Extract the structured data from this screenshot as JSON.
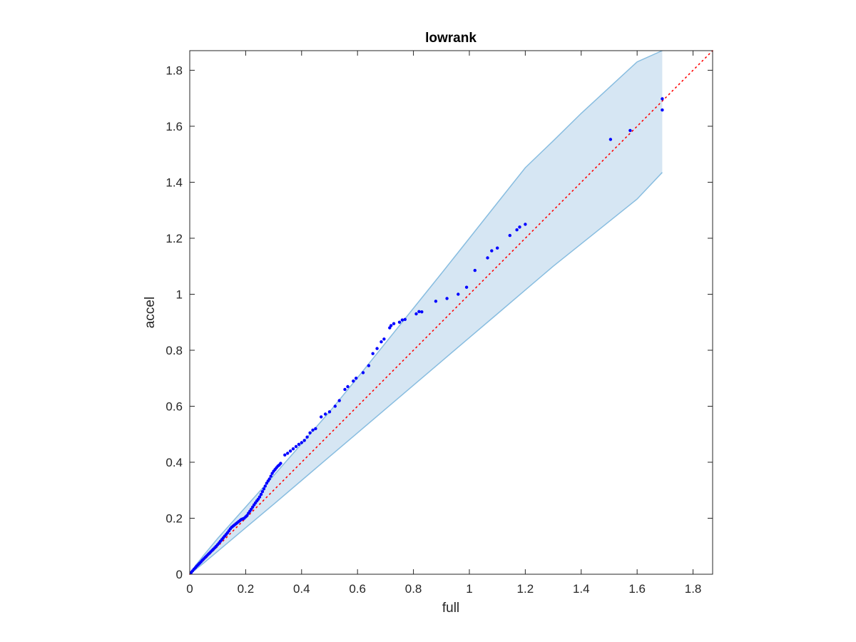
{
  "colors": {
    "points": "#0000ff",
    "reference_line": "#ff0000",
    "band_fill": "#d6e6f3",
    "band_edge": "#88bde0",
    "axes": "#262626"
  },
  "chart_data": {
    "type": "scatter",
    "title": "lowrank",
    "xlabel": "full",
    "ylabel": "accel",
    "xlim": [
      0,
      1.87
    ],
    "ylim": [
      0,
      1.87
    ],
    "xticks": [
      0,
      0.2,
      0.4,
      0.6,
      0.8,
      1,
      1.2,
      1.4,
      1.6,
      1.8
    ],
    "yticks": [
      0,
      0.2,
      0.4,
      0.6,
      0.8,
      1,
      1.2,
      1.4,
      1.6,
      1.8
    ],
    "xtick_labels": [
      "0",
      "0.2",
      "0.4",
      "0.6",
      "0.8",
      "1",
      "1.2",
      "1.4",
      "1.6",
      "1.8"
    ],
    "ytick_labels": [
      "0",
      "0.2",
      "0.4",
      "0.6",
      "0.8",
      "1",
      "1.2",
      "1.4",
      "1.6",
      "1.8"
    ],
    "grid": false,
    "box": true,
    "reference_line": {
      "style": "dotted",
      "x": [
        0,
        1.87
      ],
      "y": [
        0,
        1.87
      ]
    },
    "confidence_band": {
      "x": [
        0,
        0.02,
        0.05,
        0.1,
        0.15,
        0.2,
        0.3,
        0.4,
        0.5,
        0.6,
        0.7,
        0.8,
        0.9,
        1.0,
        1.1,
        1.2,
        1.3,
        1.4,
        1.5,
        1.6,
        1.69
      ],
      "upper": [
        0,
        0.03,
        0.068,
        0.128,
        0.184,
        0.24,
        0.352,
        0.466,
        0.58,
        0.702,
        0.826,
        0.95,
        1.074,
        1.2,
        1.326,
        1.452,
        1.548,
        1.646,
        1.738,
        1.83,
        1.87
      ],
      "lower": [
        0,
        0.016,
        0.04,
        0.082,
        0.124,
        0.166,
        0.25,
        0.335,
        0.42,
        0.505,
        0.59,
        0.675,
        0.76,
        0.845,
        0.93,
        1.015,
        1.1,
        1.18,
        1.26,
        1.34,
        1.435
      ]
    },
    "series": [
      {
        "points": [
          [
            0.005,
            0.006
          ],
          [
            0.01,
            0.012
          ],
          [
            0.015,
            0.018
          ],
          [
            0.02,
            0.023
          ],
          [
            0.025,
            0.029
          ],
          [
            0.03,
            0.034
          ],
          [
            0.035,
            0.039
          ],
          [
            0.04,
            0.044
          ],
          [
            0.045,
            0.05
          ],
          [
            0.05,
            0.055
          ],
          [
            0.055,
            0.06
          ],
          [
            0.06,
            0.065
          ],
          [
            0.065,
            0.07
          ],
          [
            0.07,
            0.075
          ],
          [
            0.075,
            0.08
          ],
          [
            0.08,
            0.085
          ],
          [
            0.085,
            0.09
          ],
          [
            0.09,
            0.095
          ],
          [
            0.095,
            0.1
          ],
          [
            0.1,
            0.106
          ],
          [
            0.105,
            0.112
          ],
          [
            0.11,
            0.118
          ],
          [
            0.115,
            0.124
          ],
          [
            0.12,
            0.13
          ],
          [
            0.125,
            0.136
          ],
          [
            0.13,
            0.142
          ],
          [
            0.135,
            0.148
          ],
          [
            0.14,
            0.155
          ],
          [
            0.145,
            0.162
          ],
          [
            0.15,
            0.168
          ],
          [
            0.155,
            0.172
          ],
          [
            0.16,
            0.176
          ],
          [
            0.165,
            0.18
          ],
          [
            0.17,
            0.184
          ],
          [
            0.175,
            0.188
          ],
          [
            0.18,
            0.192
          ],
          [
            0.185,
            0.196
          ],
          [
            0.19,
            0.198
          ],
          [
            0.195,
            0.2
          ],
          [
            0.2,
            0.205
          ],
          [
            0.205,
            0.21
          ],
          [
            0.21,
            0.218
          ],
          [
            0.215,
            0.225
          ],
          [
            0.22,
            0.232
          ],
          [
            0.225,
            0.24
          ],
          [
            0.23,
            0.248
          ],
          [
            0.235,
            0.255
          ],
          [
            0.24,
            0.262
          ],
          [
            0.245,
            0.268
          ],
          [
            0.25,
            0.276
          ],
          [
            0.255,
            0.285
          ],
          [
            0.26,
            0.295
          ],
          [
            0.265,
            0.305
          ],
          [
            0.27,
            0.315
          ],
          [
            0.275,
            0.325
          ],
          [
            0.28,
            0.333
          ],
          [
            0.285,
            0.34
          ],
          [
            0.29,
            0.35
          ],
          [
            0.295,
            0.36
          ],
          [
            0.3,
            0.368
          ],
          [
            0.305,
            0.374
          ],
          [
            0.31,
            0.38
          ],
          [
            0.315,
            0.386
          ],
          [
            0.32,
            0.39
          ],
          [
            0.325,
            0.396
          ],
          [
            0.34,
            0.426
          ],
          [
            0.35,
            0.432
          ],
          [
            0.36,
            0.44
          ],
          [
            0.37,
            0.448
          ],
          [
            0.38,
            0.456
          ],
          [
            0.39,
            0.464
          ],
          [
            0.4,
            0.47
          ],
          [
            0.41,
            0.478
          ],
          [
            0.42,
            0.49
          ],
          [
            0.43,
            0.505
          ],
          [
            0.44,
            0.515
          ],
          [
            0.45,
            0.52
          ],
          [
            0.47,
            0.562
          ],
          [
            0.485,
            0.572
          ],
          [
            0.5,
            0.58
          ],
          [
            0.52,
            0.6
          ],
          [
            0.535,
            0.62
          ],
          [
            0.555,
            0.66
          ],
          [
            0.565,
            0.67
          ],
          [
            0.585,
            0.69
          ],
          [
            0.595,
            0.7
          ],
          [
            0.62,
            0.72
          ],
          [
            0.64,
            0.745
          ],
          [
            0.655,
            0.788
          ],
          [
            0.67,
            0.806
          ],
          [
            0.685,
            0.83
          ],
          [
            0.695,
            0.84
          ],
          [
            0.715,
            0.88
          ],
          [
            0.72,
            0.888
          ],
          [
            0.73,
            0.895
          ],
          [
            0.75,
            0.9
          ],
          [
            0.76,
            0.908
          ],
          [
            0.77,
            0.91
          ],
          [
            0.81,
            0.93
          ],
          [
            0.82,
            0.938
          ],
          [
            0.83,
            0.937
          ],
          [
            0.88,
            0.975
          ],
          [
            0.92,
            0.985
          ],
          [
            0.96,
            1.0
          ],
          [
            0.99,
            1.025
          ],
          [
            1.02,
            1.085
          ],
          [
            1.065,
            1.13
          ],
          [
            1.08,
            1.155
          ],
          [
            1.1,
            1.165
          ],
          [
            1.145,
            1.21
          ],
          [
            1.17,
            1.23
          ],
          [
            1.18,
            1.24
          ],
          [
            1.2,
            1.25
          ],
          [
            1.505,
            1.553
          ],
          [
            1.575,
            1.585
          ],
          [
            1.69,
            1.698
          ],
          [
            1.69,
            1.658
          ]
        ]
      }
    ]
  }
}
